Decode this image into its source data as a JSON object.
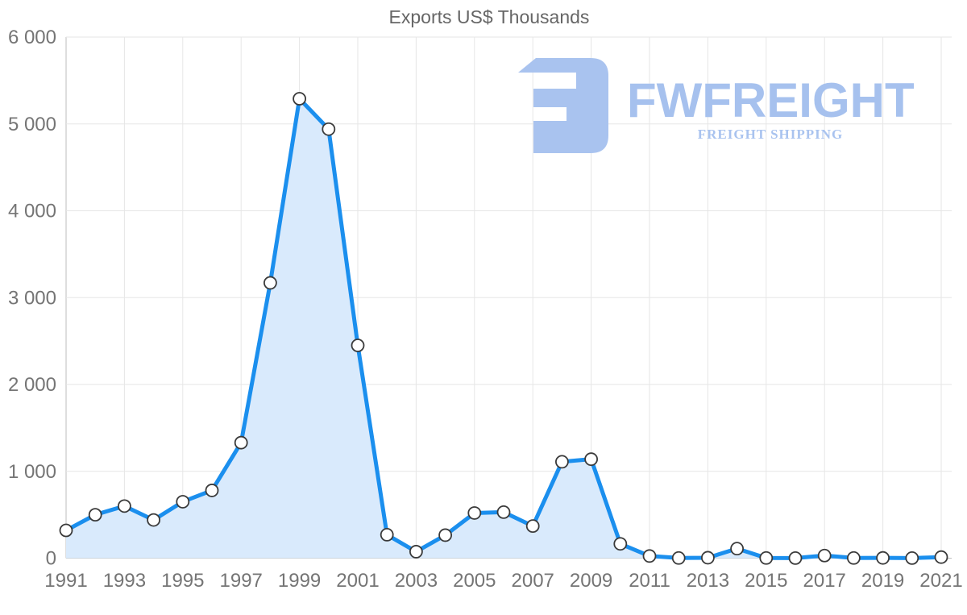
{
  "logo": {
    "brand": "FWFREIGHT",
    "subtitle": "FREIGHT SHIPPING",
    "color": "#a6c1ee",
    "subtitle_color": "#a9c3ef"
  },
  "colors": {
    "line": "#1b8fee",
    "fill": "#d9eafc",
    "marker_fill": "#ffffff",
    "marker_stroke": "#3a3a3a",
    "grid": "#e6e6e6",
    "axis": "#bdbdbd",
    "tick_text": "#757575",
    "title_text": "#666666"
  },
  "chart_data": {
    "type": "area",
    "title": "Exports US$ Thousands",
    "xlabel": "",
    "ylabel": "",
    "x": [
      1991,
      1992,
      1993,
      1994,
      1995,
      1996,
      1997,
      1998,
      1999,
      2000,
      2001,
      2002,
      2003,
      2004,
      2005,
      2006,
      2007,
      2008,
      2009,
      2010,
      2011,
      2012,
      2013,
      2014,
      2015,
      2016,
      2017,
      2018,
      2019,
      2020,
      2021
    ],
    "series": [
      {
        "name": "Exports US$ Thousands",
        "values": [
          320,
          500,
          600,
          440,
          650,
          780,
          1330,
          3170,
          5290,
          4940,
          2450,
          270,
          75,
          265,
          520,
          530,
          370,
          1110,
          1140,
          165,
          25,
          2,
          5,
          110,
          2,
          1,
          30,
          2,
          3,
          1,
          12
        ]
      }
    ],
    "ylim": [
      0,
      6000
    ],
    "y_tick_labels": [
      "0",
      "1 000",
      "2 000",
      "3 000",
      "4 000",
      "5 000",
      "6 000"
    ],
    "x_tick_labels": [
      "1991",
      "1993",
      "1995",
      "1997",
      "1999",
      "2001",
      "2003",
      "2005",
      "2007",
      "2009",
      "2011",
      "2013",
      "2015",
      "2017",
      "2019",
      "2021"
    ],
    "grid": true,
    "legend": false,
    "marker": "circle"
  }
}
